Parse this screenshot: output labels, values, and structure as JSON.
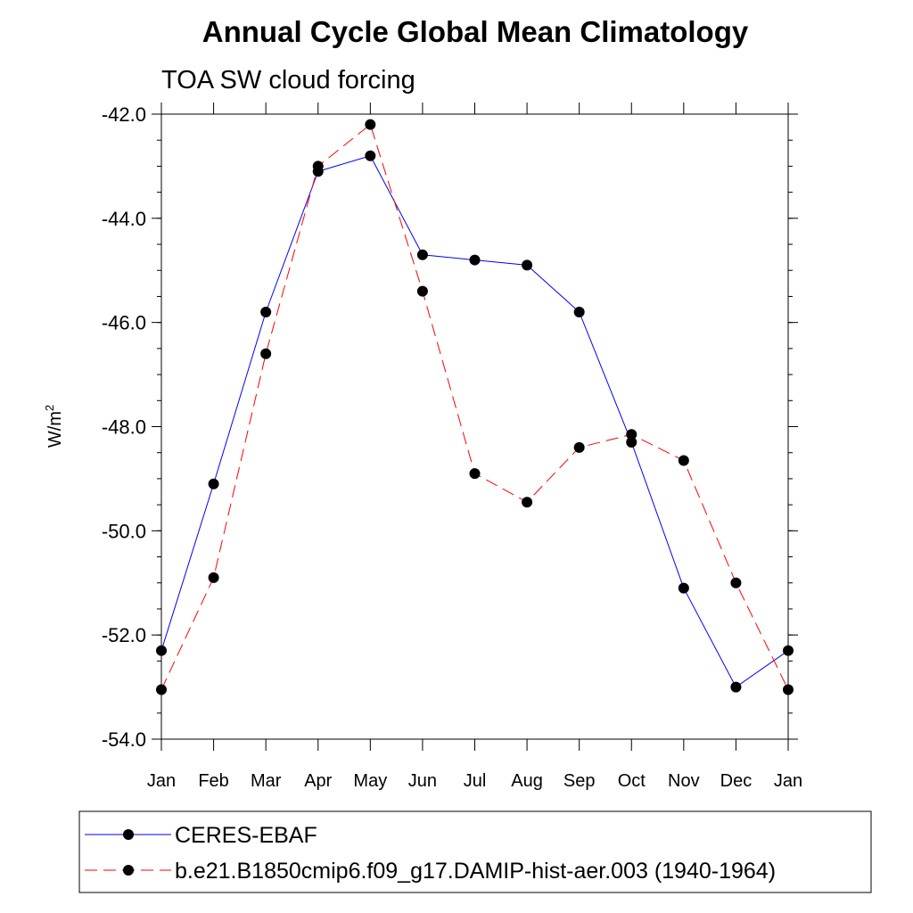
{
  "chart_data": {
    "type": "line",
    "title": "Annual Cycle Global Mean Climatology",
    "subtitle": "TOA SW cloud forcing",
    "ylabel": "W/m",
    "ylabel_sup": "2",
    "xlabel": "",
    "categories": [
      "Jan",
      "Feb",
      "Mar",
      "Apr",
      "May",
      "Jun",
      "Jul",
      "Aug",
      "Sep",
      "Oct",
      "Nov",
      "Dec",
      "Jan"
    ],
    "ylim": [
      -54.0,
      -42.0
    ],
    "yticks": [
      -54.0,
      -52.0,
      -50.0,
      -48.0,
      -46.0,
      -44.0,
      -42.0
    ],
    "ytick_labels": [
      "-54.0",
      "-52.0",
      "-50.0",
      "-48.0",
      "-46.0",
      "-44.0",
      "-42.0"
    ],
    "grid": false,
    "legend_position": "bottom",
    "series": [
      {
        "name": "CERES-EBAF",
        "color": "#0000ff",
        "dash": "solid",
        "values": [
          -52.3,
          -49.1,
          -45.8,
          -43.1,
          -42.8,
          -44.7,
          -44.8,
          -44.9,
          -45.8,
          -48.3,
          -51.1,
          -53.0,
          -52.3
        ]
      },
      {
        "name": "b.e21.B1850cmip6.f09_g17.DAMIP-hist-aer.003 (1940-1964)",
        "color": "#ff0000",
        "dash": "dashed",
        "values": [
          -53.05,
          -50.9,
          -46.6,
          -43.0,
          -42.2,
          -45.4,
          -48.9,
          -49.45,
          -48.4,
          -48.15,
          -48.65,
          -51.0,
          -53.05
        ]
      }
    ]
  }
}
